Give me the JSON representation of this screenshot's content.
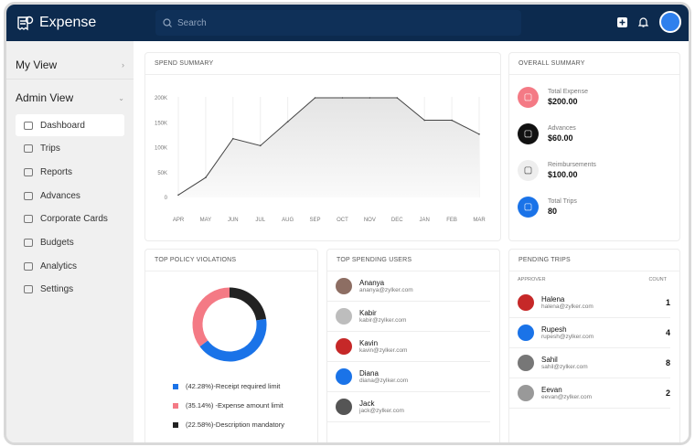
{
  "header": {
    "app_name": "Expense",
    "search_placeholder": "Search"
  },
  "sidebar": {
    "my_view": "My View",
    "admin_view": "Admin View",
    "items": [
      {
        "label": "Dashboard",
        "active": true
      },
      {
        "label": "Trips"
      },
      {
        "label": "Reports"
      },
      {
        "label": "Advances"
      },
      {
        "label": "Corporate Cards"
      },
      {
        "label": "Budgets"
      },
      {
        "label": "Analytics"
      },
      {
        "label": "Settings"
      }
    ]
  },
  "spend_summary": {
    "title": "SPEND SUMMARY"
  },
  "chart_data": {
    "type": "area",
    "categories": [
      "APR",
      "MAY",
      "JUN",
      "JUL",
      "AUG",
      "SEP",
      "OCT",
      "NOV",
      "DEC",
      "JAN",
      "FEB",
      "MAR"
    ],
    "values": [
      5000,
      40000,
      118000,
      104000,
      152000,
      200000,
      200000,
      200000,
      200000,
      155000,
      155000,
      127000
    ],
    "yticks": [
      "0",
      "50K",
      "100K",
      "150K",
      "200K"
    ],
    "ylim": [
      0,
      200000
    ],
    "grid": "vertical"
  },
  "overall": {
    "title": "OVERALL SUMMARY",
    "items": [
      {
        "label": "Total Expense",
        "value": "$200.00",
        "color": "#f47a85"
      },
      {
        "label": "Advances",
        "value": "$60.00",
        "color": "#111111"
      },
      {
        "label": "Reimbursements",
        "value": "$100.00",
        "color": "#eeeeee"
      },
      {
        "label": "Total Trips",
        "value": "80",
        "color": "#1a73e8"
      }
    ]
  },
  "violations": {
    "title": "TOP POLICY VIOLATIONS",
    "items": [
      {
        "label": "(42.28%)-Receipt required limit",
        "pct": 42.28,
        "color": "#1a73e8"
      },
      {
        "label": "(35.14%) -Expense amount limit",
        "pct": 35.14,
        "color": "#f47a85"
      },
      {
        "label": "(22.58%)-Description mandatory",
        "pct": 22.58,
        "color": "#222222"
      }
    ]
  },
  "top_users": {
    "title": "TOP SPENDING USERS",
    "users": [
      {
        "name": "Ananya",
        "email": "ananya@zylker.com"
      },
      {
        "name": "Kabir",
        "email": "kabir@zylker.com"
      },
      {
        "name": "Kavin",
        "email": "kavin@zylker.com"
      },
      {
        "name": "Diana",
        "email": "diana@zylker.com"
      },
      {
        "name": "Jack",
        "email": "jack@zylker.com"
      }
    ]
  },
  "pending": {
    "title": "PENDING TRIPS",
    "col_approver": "APPROVER",
    "col_count": "COUNT",
    "rows": [
      {
        "name": "Halena",
        "email": "halena@zylker.com",
        "count": "1"
      },
      {
        "name": "Rupesh",
        "email": "rupesh@zylker.com",
        "count": "4"
      },
      {
        "name": "Sahil",
        "email": "sahil@zylker.com",
        "count": "8"
      },
      {
        "name": "Eevan",
        "email": "eevan@zylker.com",
        "count": "2"
      }
    ]
  }
}
